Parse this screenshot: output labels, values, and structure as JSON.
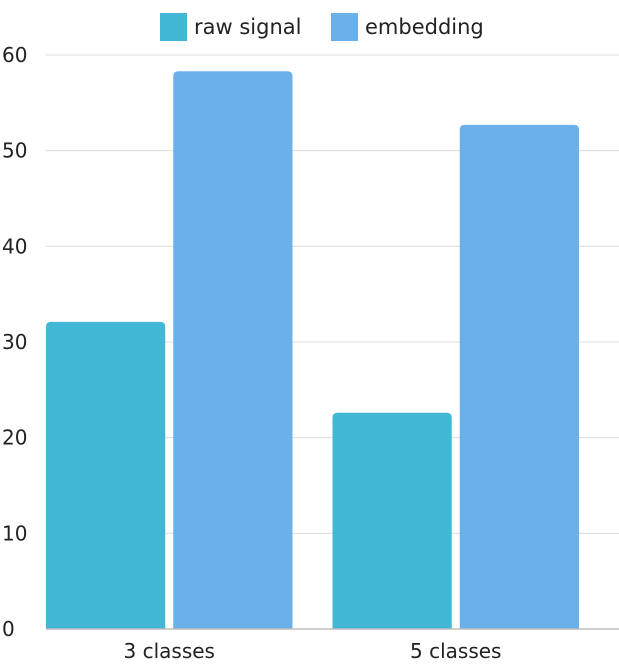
{
  "chart_data": {
    "type": "bar",
    "categories": [
      "3 classes",
      "5 classes"
    ],
    "series": [
      {
        "name": "raw signal",
        "color": "#42b8d6",
        "values": [
          32.1,
          22.6
        ]
      },
      {
        "name": "embedding",
        "color": "#6cb0ea",
        "values": [
          58.3,
          52.7
        ]
      }
    ],
    "ylim": [
      0,
      60
    ],
    "yticks": [
      "0",
      "10",
      "20",
      "30",
      "40",
      "50",
      "60"
    ],
    "grid": true,
    "legend_position": "top"
  }
}
